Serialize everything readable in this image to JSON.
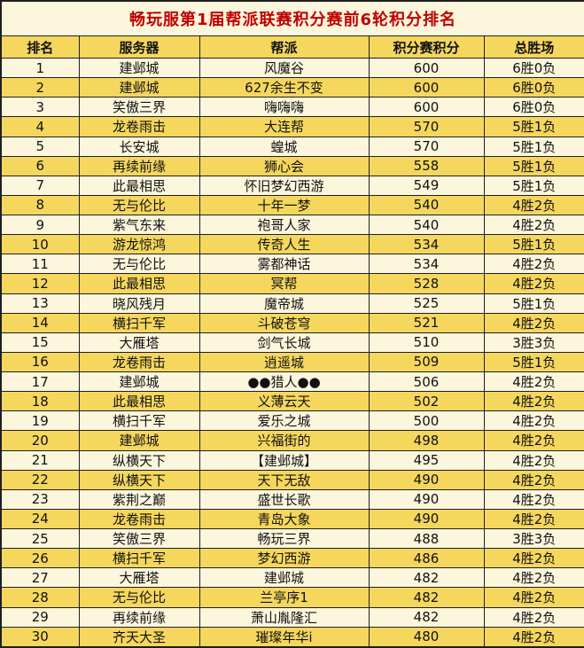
{
  "title": "畅玩服第1届帮派联赛积分赛前6轮积分排名",
  "columns": [
    "排名",
    "服务器",
    "帮派",
    "积分赛积分",
    "总胜场"
  ],
  "colors": {
    "cream_row": "#FCF6DD",
    "gold_row": "#F5D75E",
    "title_text": "#C00000",
    "border": "#1F1F1F"
  },
  "chart_data": {
    "type": "table",
    "title": "畅玩服第1届帮派联赛积分赛前6轮积分排名",
    "columns": [
      "排名",
      "服务器",
      "帮派",
      "积分赛积分",
      "总胜场"
    ],
    "rows": [
      {
        "rank": "1",
        "server": "建邺城",
        "faction": "风魔谷",
        "points": "600",
        "record": "6胜0负"
      },
      {
        "rank": "2",
        "server": "建邺城",
        "faction": "627余生不变",
        "points": "600",
        "record": "6胜0负"
      },
      {
        "rank": "3",
        "server": "笑傲三界",
        "faction": "嗨嗨嗨",
        "points": "600",
        "record": "6胜0负"
      },
      {
        "rank": "4",
        "server": "龙卷雨击",
        "faction": "大连帮",
        "points": "570",
        "record": "5胜1负"
      },
      {
        "rank": "5",
        "server": "长安城",
        "faction": "蝗城",
        "points": "570",
        "record": "5胜1负"
      },
      {
        "rank": "6",
        "server": "再续前缘",
        "faction": "狮心会",
        "points": "558",
        "record": "5胜1负"
      },
      {
        "rank": "7",
        "server": "此最相思",
        "faction": "怀旧梦幻西游",
        "points": "549",
        "record": "5胜1负"
      },
      {
        "rank": "8",
        "server": "无与伦比",
        "faction": "十年一梦",
        "points": "540",
        "record": "4胜2负"
      },
      {
        "rank": "9",
        "server": "紫气东来",
        "faction": "袍哥人家",
        "points": "540",
        "record": "4胜2负"
      },
      {
        "rank": "10",
        "server": "游龙惊鸿",
        "faction": "传奇人生",
        "points": "534",
        "record": "5胜1负"
      },
      {
        "rank": "11",
        "server": "无与伦比",
        "faction": "雾都神话",
        "points": "534",
        "record": "4胜2负"
      },
      {
        "rank": "12",
        "server": "此最相思",
        "faction": "冥帮",
        "points": "528",
        "record": "4胜2负"
      },
      {
        "rank": "13",
        "server": "晓风残月",
        "faction": "魔帝城",
        "points": "525",
        "record": "5胜1负"
      },
      {
        "rank": "14",
        "server": "横扫千军",
        "faction": "斗破苍穹",
        "points": "521",
        "record": "4胜2负"
      },
      {
        "rank": "15",
        "server": "大雁塔",
        "faction": "剑气长城",
        "points": "510",
        "record": "3胜3负"
      },
      {
        "rank": "16",
        "server": "龙卷雨击",
        "faction": "逍遥城",
        "points": "509",
        "record": "5胜1负"
      },
      {
        "rank": "17",
        "server": "建邺城",
        "faction": "●●猎人●●",
        "points": "506",
        "record": "4胜2负"
      },
      {
        "rank": "18",
        "server": "此最相思",
        "faction": "义薄云天",
        "points": "502",
        "record": "4胜2负"
      },
      {
        "rank": "19",
        "server": "横扫千军",
        "faction": "爱乐之城",
        "points": "500",
        "record": "4胜2负"
      },
      {
        "rank": "20",
        "server": "建邺城",
        "faction": "兴福街的",
        "points": "498",
        "record": "4胜2负"
      },
      {
        "rank": "21",
        "server": "纵横天下",
        "faction": "【建邺城】",
        "points": "495",
        "record": "4胜2负"
      },
      {
        "rank": "22",
        "server": "纵横天下",
        "faction": "天下无敌",
        "points": "490",
        "record": "4胜2负"
      },
      {
        "rank": "23",
        "server": "紫荆之巅",
        "faction": "盛世长歌",
        "points": "490",
        "record": "4胜2负"
      },
      {
        "rank": "24",
        "server": "龙卷雨击",
        "faction": "青岛大象",
        "points": "490",
        "record": "4胜2负"
      },
      {
        "rank": "25",
        "server": "笑傲三界",
        "faction": "畅玩三界",
        "points": "488",
        "record": "3胜3负"
      },
      {
        "rank": "26",
        "server": "横扫千军",
        "faction": "梦幻西游",
        "points": "486",
        "record": "4胜2负"
      },
      {
        "rank": "27",
        "server": "大雁塔",
        "faction": "建邺城",
        "points": "482",
        "record": "4胜2负"
      },
      {
        "rank": "28",
        "server": "无与伦比",
        "faction": "兰亭序1",
        "points": "482",
        "record": "4胜2负"
      },
      {
        "rank": "29",
        "server": "再续前缘",
        "faction": "萧山胤隆汇",
        "points": "482",
        "record": "4胜2负"
      },
      {
        "rank": "30",
        "server": "齐天大圣",
        "faction": "璀璨年华i",
        "points": "480",
        "record": "4胜2负"
      }
    ]
  }
}
